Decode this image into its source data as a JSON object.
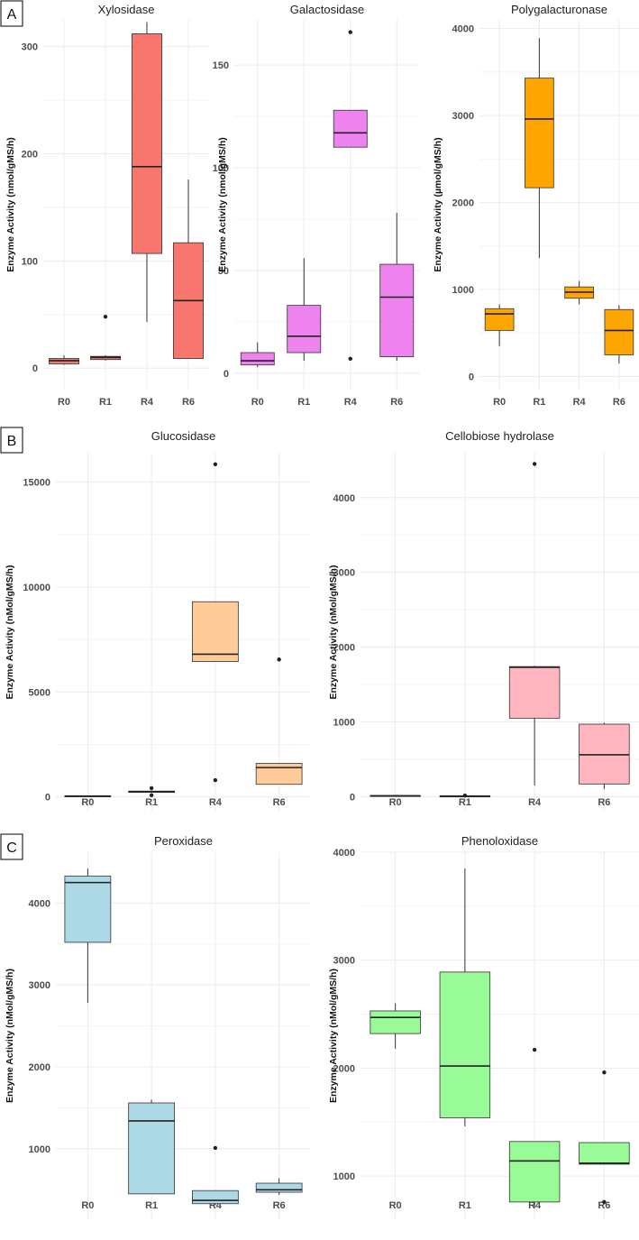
{
  "panels": [
    "A",
    "B",
    "C"
  ],
  "chart_data": [
    {
      "type": "box",
      "title": "Xylosidase",
      "ylabel": "Enzyme Activity (nmol/gMS/h)",
      "categories": [
        "R0",
        "R1",
        "R4",
        "R6"
      ],
      "yticks": [
        0,
        100,
        200,
        300
      ],
      "ylim": [
        -20,
        325
      ],
      "fill": "#F8766D",
      "boxes": [
        {
          "cat": "R0",
          "min": 3,
          "q1": 4,
          "median": 7,
          "q3": 9,
          "max": 12,
          "outliers": []
        },
        {
          "cat": "R1",
          "min": 7,
          "q1": 8,
          "median": 10,
          "q3": 11,
          "max": 12,
          "outliers": [
            48
          ]
        },
        {
          "cat": "R4",
          "min": 43,
          "q1": 107,
          "median": 188,
          "q3": 312,
          "max": 323,
          "outliers": []
        },
        {
          "cat": "R6",
          "min": 9,
          "q1": 9,
          "median": 63,
          "q3": 117,
          "max": 176,
          "outliers": []
        }
      ]
    },
    {
      "type": "box",
      "title": "Galactosidase",
      "ylabel": "Enzyme Activity (nmol/gMS/h)",
      "categories": [
        "R0",
        "R1",
        "R4",
        "R6"
      ],
      "yticks": [
        0,
        50,
        100,
        150
      ],
      "ylim": [
        -8,
        172
      ],
      "fill": "#EE82EE",
      "boxes": [
        {
          "cat": "R0",
          "min": 3,
          "q1": 4,
          "median": 6,
          "q3": 10,
          "max": 15,
          "outliers": []
        },
        {
          "cat": "R1",
          "min": 6,
          "q1": 10,
          "median": 18,
          "q3": 33,
          "max": 56,
          "outliers": []
        },
        {
          "cat": "R4",
          "min": 110,
          "q1": 110,
          "median": 117,
          "q3": 128,
          "max": 128,
          "outliers": [
            7,
            166
          ]
        },
        {
          "cat": "R6",
          "min": 6,
          "q1": 8,
          "median": 37,
          "q3": 53,
          "max": 78,
          "outliers": []
        }
      ]
    },
    {
      "type": "box",
      "title": "Polygalacturonase",
      "ylabel": "Enzyme Activity (µmol/gMS/h)",
      "categories": [
        "R0",
        "R1",
        "R4",
        "R6"
      ],
      "yticks": [
        0,
        1000,
        2000,
        3000,
        4000
      ],
      "ylim": [
        -150,
        4100
      ],
      "fill": "#FFA500",
      "boxes": [
        {
          "cat": "R0",
          "min": 350,
          "q1": 530,
          "median": 720,
          "q3": 780,
          "max": 830,
          "outliers": []
        },
        {
          "cat": "R1",
          "min": 1360,
          "q1": 2170,
          "median": 2960,
          "q3": 3430,
          "max": 3890,
          "outliers": []
        },
        {
          "cat": "R4",
          "min": 830,
          "q1": 900,
          "median": 970,
          "q3": 1030,
          "max": 1100,
          "outliers": []
        },
        {
          "cat": "R6",
          "min": 150,
          "q1": 250,
          "median": 530,
          "q3": 770,
          "max": 820,
          "outliers": []
        }
      ]
    },
    {
      "type": "box",
      "title": "Glucosidase",
      "ylabel": "Enzyme Activity (nMol/gMS/h)",
      "categories": [
        "R0",
        "R1",
        "R4",
        "R6"
      ],
      "yticks": [
        0,
        5000,
        10000,
        15000
      ],
      "ylim": [
        -700,
        16400
      ],
      "fill": "#FFCC99",
      "boxes": [
        {
          "cat": "R0",
          "min": 30,
          "q1": 30,
          "median": 40,
          "q3": 50,
          "max": 50,
          "outliers": []
        },
        {
          "cat": "R1",
          "min": 200,
          "q1": 220,
          "median": 250,
          "q3": 280,
          "max": 300,
          "outliers": [
            80,
            420
          ]
        },
        {
          "cat": "R4",
          "min": 6450,
          "q1": 6450,
          "median": 6800,
          "q3": 9300,
          "max": 9300,
          "outliers": [
            800,
            15850
          ]
        },
        {
          "cat": "R6",
          "min": 600,
          "q1": 600,
          "median": 1400,
          "q3": 1600,
          "max": 1600,
          "outliers": [
            6550
          ]
        }
      ]
    },
    {
      "type": "box",
      "title": "Cellobiose hydrolase",
      "ylabel": "Enzyme Activity (nMol/gMS/h)",
      "categories": [
        "R0",
        "R1",
        "R4",
        "R6"
      ],
      "yticks": [
        0,
        1000,
        2000,
        3000,
        4000
      ],
      "ylim": [
        -200,
        4600
      ],
      "fill": "#FFB6C1",
      "boxes": [
        {
          "cat": "R0",
          "min": 5,
          "q1": 8,
          "median": 12,
          "q3": 15,
          "max": 20,
          "outliers": []
        },
        {
          "cat": "R1",
          "min": 3,
          "q1": 5,
          "median": 7,
          "q3": 9,
          "max": 11,
          "outliers": [
            15
          ]
        },
        {
          "cat": "R4",
          "min": 150,
          "q1": 1050,
          "median": 1730,
          "q3": 1740,
          "max": 1750,
          "outliers": [
            4450
          ]
        },
        {
          "cat": "R6",
          "min": 100,
          "q1": 170,
          "median": 560,
          "q3": 970,
          "max": 990,
          "outliers": []
        }
      ]
    },
    {
      "type": "box",
      "title": "Peroxidase",
      "ylabel": "Enzyme Activity (nMol/gMS/h)",
      "categories": [
        "R0",
        "R1",
        "R4",
        "R6"
      ],
      "yticks": [
        1000,
        2000,
        3000,
        4000
      ],
      "ylim": [
        140,
        4620
      ],
      "fill": "#ADD8E6",
      "boxes": [
        {
          "cat": "R0",
          "min": 2780,
          "q1": 3520,
          "median": 4250,
          "q3": 4330,
          "max": 4420,
          "outliers": []
        },
        {
          "cat": "R1",
          "min": 450,
          "q1": 450,
          "median": 1340,
          "q3": 1560,
          "max": 1600,
          "outliers": []
        },
        {
          "cat": "R4",
          "min": 310,
          "q1": 330,
          "median": 370,
          "q3": 490,
          "max": 490,
          "outliers": [
            1010
          ]
        },
        {
          "cat": "R6",
          "min": 440,
          "q1": 470,
          "median": 500,
          "q3": 580,
          "max": 640,
          "outliers": []
        }
      ]
    },
    {
      "type": "box",
      "title": "Phenoloxidase",
      "ylabel": "Enzyme Activity (nMol/gMS/h)",
      "categories": [
        "R0",
        "R1",
        "R4",
        "R6"
      ],
      "yticks": [
        1000,
        2000,
        3000,
        4000
      ],
      "ylim": [
        600,
        4000
      ],
      "fill": "#98FB98",
      "boxes": [
        {
          "cat": "R0",
          "min": 2180,
          "q1": 2320,
          "median": 2470,
          "q3": 2530,
          "max": 2600,
          "outliers": []
        },
        {
          "cat": "R1",
          "min": 1460,
          "q1": 1540,
          "median": 2020,
          "q3": 2890,
          "max": 3850,
          "outliers": []
        },
        {
          "cat": "R4",
          "min": 710,
          "q1": 760,
          "median": 1140,
          "q3": 1320,
          "max": 1320,
          "outliers": [
            2170
          ]
        },
        {
          "cat": "R6",
          "min": 1110,
          "q1": 1110,
          "median": 1120,
          "q3": 1310,
          "max": 1310,
          "outliers": [
            760,
            1960
          ]
        }
      ]
    }
  ]
}
